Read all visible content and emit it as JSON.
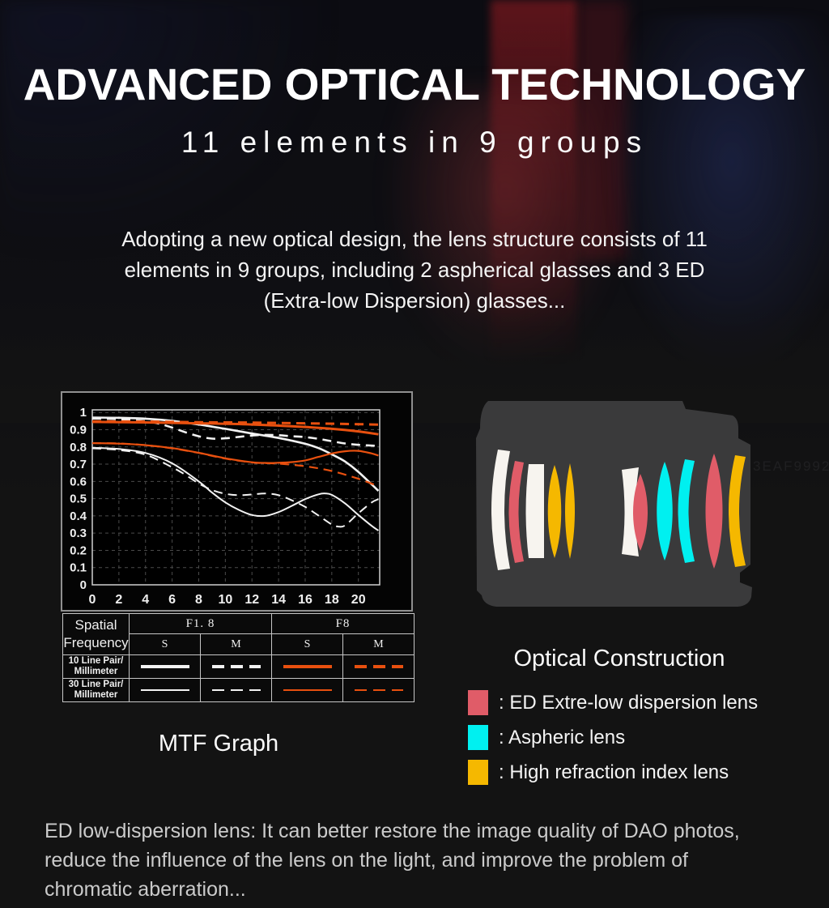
{
  "header": {
    "title": "ADVANCED OPTICAL TECHNOLOGY",
    "subtitle": "11 elements in 9 groups"
  },
  "intro": {
    "lines": [
      "Adopting a new optical design, the lens structure consists of 11",
      "elements in 9 groups, including 2 aspherical glasses and 3 ED",
      "(Extra-low Dispersion) glasses..."
    ]
  },
  "mtf": {
    "caption": "MTF Graph",
    "chart_data": {
      "type": "line",
      "title": "MTF Graph",
      "xlim": [
        0,
        21.6
      ],
      "ylim": [
        0,
        1.015
      ],
      "x_ticks": [
        0,
        2,
        4,
        6,
        8,
        10,
        12,
        14,
        16,
        18,
        20
      ],
      "y_ticks": [
        0,
        0.1,
        0.2,
        0.3,
        0.4,
        0.5,
        0.6,
        0.7,
        0.8,
        0.9,
        1
      ],
      "grid": "dashed",
      "legend_position": "table-below",
      "colors": {
        "f18": "#f2f2f2",
        "f8": "#e8500f"
      },
      "series": [
        {
          "name": "F1.8 S 10 Line Pair/mm",
          "aperture": "F1.8",
          "orientation": "S",
          "color": "#f2f2f2",
          "dash": "solid",
          "width": 2.6,
          "x": [
            0,
            2,
            4,
            6,
            8,
            10,
            12,
            14,
            16,
            17,
            18,
            19,
            20,
            21.5
          ],
          "y": [
            0.97,
            0.969,
            0.964,
            0.951,
            0.93,
            0.905,
            0.878,
            0.852,
            0.818,
            0.793,
            0.757,
            0.715,
            0.655,
            0.545
          ]
        },
        {
          "name": "F1.8 M 10 Line Pair/mm",
          "aperture": "F1.8",
          "orientation": "M",
          "color": "#f2f2f2",
          "dash": "dashed",
          "width": 2.6,
          "x": [
            0,
            2,
            4,
            5,
            6,
            7,
            8,
            9,
            10,
            11,
            12,
            13,
            14,
            15,
            16,
            17,
            18,
            19,
            20,
            21.5
          ],
          "y": [
            0.965,
            0.961,
            0.949,
            0.935,
            0.912,
            0.885,
            0.862,
            0.848,
            0.85,
            0.858,
            0.866,
            0.87,
            0.868,
            0.862,
            0.857,
            0.847,
            0.833,
            0.82,
            0.812,
            0.806
          ]
        },
        {
          "name": "F8 S 10 Line Pair/mm",
          "aperture": "F8",
          "orientation": "S",
          "color": "#e8500f",
          "dash": "solid",
          "width": 3,
          "x": [
            0,
            4,
            8,
            12,
            16,
            18,
            20,
            21.5
          ],
          "y": [
            0.945,
            0.942,
            0.937,
            0.93,
            0.916,
            0.905,
            0.89,
            0.873
          ]
        },
        {
          "name": "F8 M 10 Line Pair/mm",
          "aperture": "F8",
          "orientation": "M",
          "color": "#e8500f",
          "dash": "dashed",
          "width": 3,
          "x": [
            0,
            4,
            8,
            12,
            16,
            20,
            21.5
          ],
          "y": [
            0.948,
            0.947,
            0.943,
            0.941,
            0.937,
            0.932,
            0.929
          ]
        },
        {
          "name": "F1.8 S 30 Line Pair/mm",
          "aperture": "F1.8",
          "orientation": "S",
          "color": "#f2f2f2",
          "dash": "solid",
          "width": 2,
          "x": [
            0,
            2,
            4,
            6,
            8,
            9,
            10,
            11,
            12,
            13,
            14,
            15,
            16,
            17,
            17.5,
            18,
            19,
            20,
            21,
            21.5
          ],
          "y": [
            0.795,
            0.788,
            0.765,
            0.705,
            0.6,
            0.535,
            0.478,
            0.435,
            0.405,
            0.4,
            0.422,
            0.458,
            0.497,
            0.525,
            0.53,
            0.522,
            0.472,
            0.405,
            0.342,
            0.315
          ]
        },
        {
          "name": "F1.8 M 30 Line Pair/mm",
          "aperture": "F1.8",
          "orientation": "M",
          "color": "#f2f2f2",
          "dash": "dashed",
          "width": 2,
          "x": [
            0,
            2,
            4,
            6,
            7,
            8,
            9,
            10,
            11,
            12,
            13,
            14,
            15,
            16,
            17,
            18,
            18.5,
            19,
            20,
            21,
            21.5
          ],
          "y": [
            0.792,
            0.782,
            0.755,
            0.682,
            0.638,
            0.588,
            0.55,
            0.528,
            0.52,
            0.524,
            0.53,
            0.52,
            0.49,
            0.452,
            0.402,
            0.35,
            0.338,
            0.345,
            0.415,
            0.478,
            0.497
          ]
        },
        {
          "name": "F8 S 30 Line Pair/mm",
          "aperture": "F8",
          "orientation": "S",
          "color": "#e8500f",
          "dash": "solid",
          "width": 2.2,
          "x": [
            0,
            2,
            4,
            6,
            8,
            10,
            12,
            13,
            14,
            15,
            16,
            17,
            18,
            19,
            20,
            21,
            21.5
          ],
          "y": [
            0.822,
            0.819,
            0.81,
            0.793,
            0.766,
            0.734,
            0.711,
            0.707,
            0.708,
            0.712,
            0.722,
            0.742,
            0.762,
            0.775,
            0.777,
            0.762,
            0.75
          ]
        },
        {
          "name": "F8 M 30 Line Pair/mm",
          "aperture": "F8",
          "orientation": "M",
          "color": "#e8500f",
          "dash": "dashed",
          "width": 2.2,
          "x": [
            0,
            2,
            4,
            6,
            8,
            10,
            12,
            13,
            14,
            16,
            18,
            20,
            21.5
          ],
          "y": [
            0.822,
            0.82,
            0.81,
            0.792,
            0.765,
            0.732,
            0.71,
            0.706,
            0.703,
            0.688,
            0.66,
            0.615,
            0.572
          ]
        }
      ]
    },
    "table": {
      "corner_line1": "Spatial",
      "corner_line2": "Frequency",
      "group_headers": [
        "F1. 8",
        "F8"
      ],
      "sub_headers": [
        "S",
        "M",
        "S",
        "M"
      ],
      "rows": [
        {
          "label_line1": "10 Line Pair/",
          "label_line2": "Millimeter",
          "thickness": 3.5,
          "samples": [
            {
              "color": "#f2f2f2",
              "dashed": false
            },
            {
              "color": "#f2f2f2",
              "dashed": true
            },
            {
              "color": "#e8500f",
              "dashed": false
            },
            {
              "color": "#e8500f",
              "dashed": true
            }
          ]
        },
        {
          "label_line1": "30 Line Pair/",
          "label_line2": "Millimeter",
          "thickness": 2,
          "samples": [
            {
              "color": "#f2f2f2",
              "dashed": false
            },
            {
              "color": "#f2f2f2",
              "dashed": true
            },
            {
              "color": "#e8500f",
              "dashed": false
            },
            {
              "color": "#e8500f",
              "dashed": true
            }
          ]
        }
      ]
    }
  },
  "optical": {
    "title": "Optical Construction",
    "colors": {
      "normal": "#f7f4ef",
      "ed": "#e05c68",
      "aspheric": "#00f0f0",
      "high": "#f5b800",
      "barrel": "#3a3a3b"
    },
    "elements": [
      {
        "type": "normal"
      },
      {
        "type": "ed"
      },
      {
        "type": "normal"
      },
      {
        "type": "high"
      },
      {
        "type": "high"
      },
      {
        "type": "normal"
      },
      {
        "type": "ed"
      },
      {
        "type": "aspheric"
      },
      {
        "type": "aspheric"
      },
      {
        "type": "ed"
      },
      {
        "type": "high"
      }
    ],
    "legend": [
      {
        "key": "ed",
        "color": "#e05c68",
        "label": ": ED Extre-low dispersion lens"
      },
      {
        "key": "aspheric",
        "color": "#00f0f0",
        "label": ": Aspheric lens"
      },
      {
        "key": "high",
        "color": "#f5b800",
        "label": ": High refraction index lens"
      }
    ]
  },
  "watermark": "3EAF9992",
  "footer": {
    "lines": [
      "ED low-dispersion lens: It can better restore the image quality of DAO photos,",
      "reduce the influence of the lens on the light, and improve the problem of",
      "chromatic aberration..."
    ]
  }
}
